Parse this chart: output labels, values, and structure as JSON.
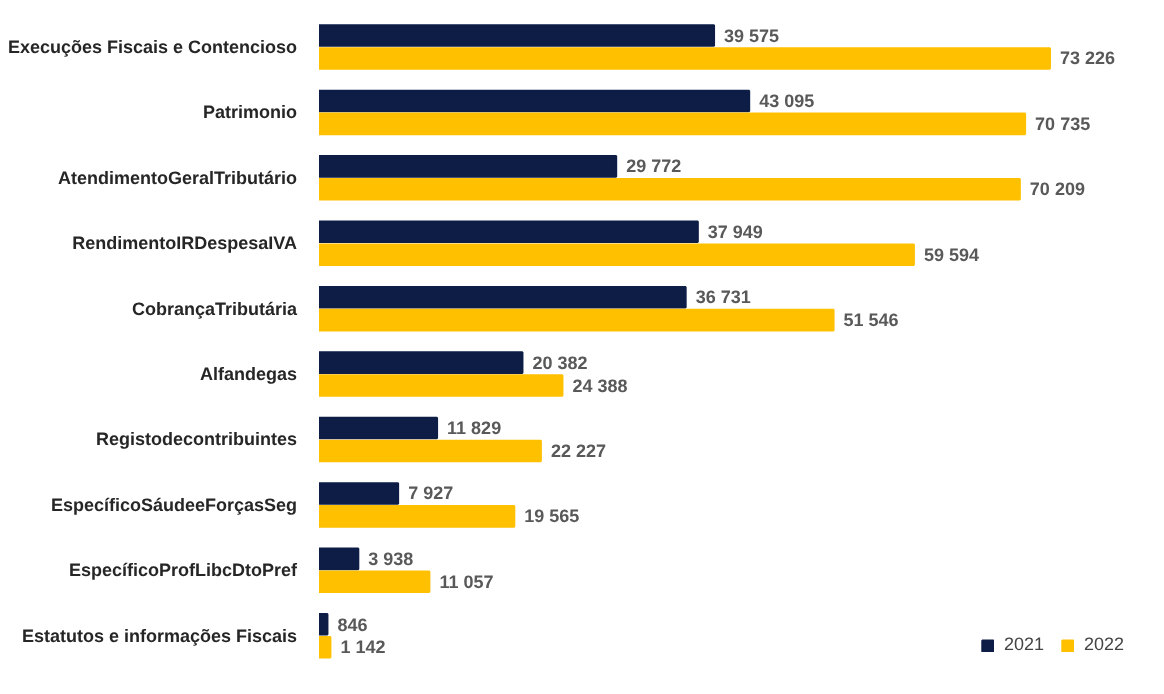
{
  "chart_data": {
    "type": "bar",
    "orientation": "horizontal",
    "legend": "bottom right",
    "grid": false,
    "categories": [
      "Execuções Fiscais e Contencioso",
      "Patrimonio",
      "AtendimentoGeralTributário",
      "RendimentoIRDespesaIVA",
      "CobrançaTributária",
      "Alfandegas",
      "Registodecontribuintes",
      "EspecíficoSáudeeForçasSeg",
      "EspecíficoProfLibcDtoPref",
      "Estatutos e informações Fiscais"
    ],
    "series": [
      {
        "name": "2021",
        "color": "#0d1d45",
        "values": [
          39575,
          43095,
          29772,
          37949,
          36731,
          20382,
          11829,
          7927,
          3938,
          846
        ],
        "value_labels": [
          "39 575",
          "43 095",
          "29 772",
          "37 949",
          "36 731",
          "20 382",
          "11 829",
          "7 927",
          "3 938",
          "846"
        ]
      },
      {
        "name": "2022",
        "color": "#ffc000",
        "values": [
          73226,
          70735,
          70209,
          59594,
          51546,
          24388,
          22227,
          19565,
          11057,
          1142
        ],
        "value_labels": [
          "73 226",
          "70 735",
          "70 209",
          "59 594",
          "51 546",
          "24 388",
          "22 227",
          "19 565",
          "11 057",
          "1 142"
        ]
      }
    ]
  }
}
